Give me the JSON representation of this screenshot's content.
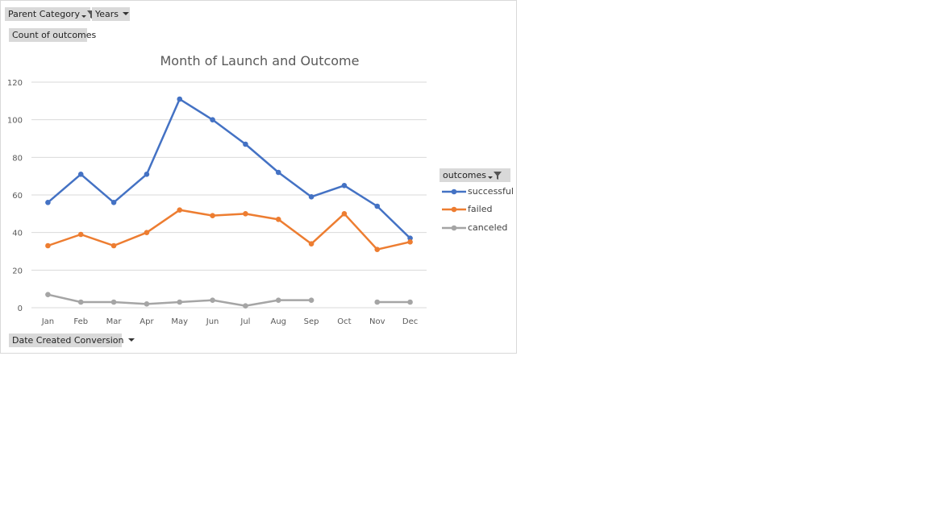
{
  "filters": {
    "parent_category": "Parent Category",
    "years": "Years",
    "values_field": "Count of outcomes",
    "axis_field": "Date Created Conversion",
    "legend_field": "outcomes"
  },
  "colors": {
    "successful": "#4472c4",
    "failed": "#ed7d31",
    "canceled": "#a5a5a5",
    "gridline": "#d9d9d9",
    "axis_text": "#595959"
  },
  "chart_data": {
    "type": "line",
    "title": "Month of Launch and Outcome",
    "xlabel": "",
    "ylabel": "",
    "categories": [
      "Jan",
      "Feb",
      "Mar",
      "Apr",
      "May",
      "Jun",
      "Jul",
      "Aug",
      "Sep",
      "Oct",
      "Nov",
      "Dec"
    ],
    "ylim": [
      0,
      120
    ],
    "yticks": [
      0,
      20,
      40,
      60,
      80,
      100,
      120
    ],
    "grid": true,
    "legend_position": "right",
    "series": [
      {
        "name": "successful",
        "values": [
          56,
          71,
          56,
          71,
          111,
          100,
          87,
          72,
          59,
          65,
          54,
          37
        ]
      },
      {
        "name": "failed",
        "values": [
          33,
          39,
          33,
          40,
          52,
          49,
          50,
          47,
          34,
          50,
          31,
          35
        ]
      },
      {
        "name": "canceled",
        "values": [
          7,
          3,
          3,
          2,
          3,
          4,
          1,
          4,
          4,
          null,
          3,
          3
        ]
      }
    ]
  }
}
